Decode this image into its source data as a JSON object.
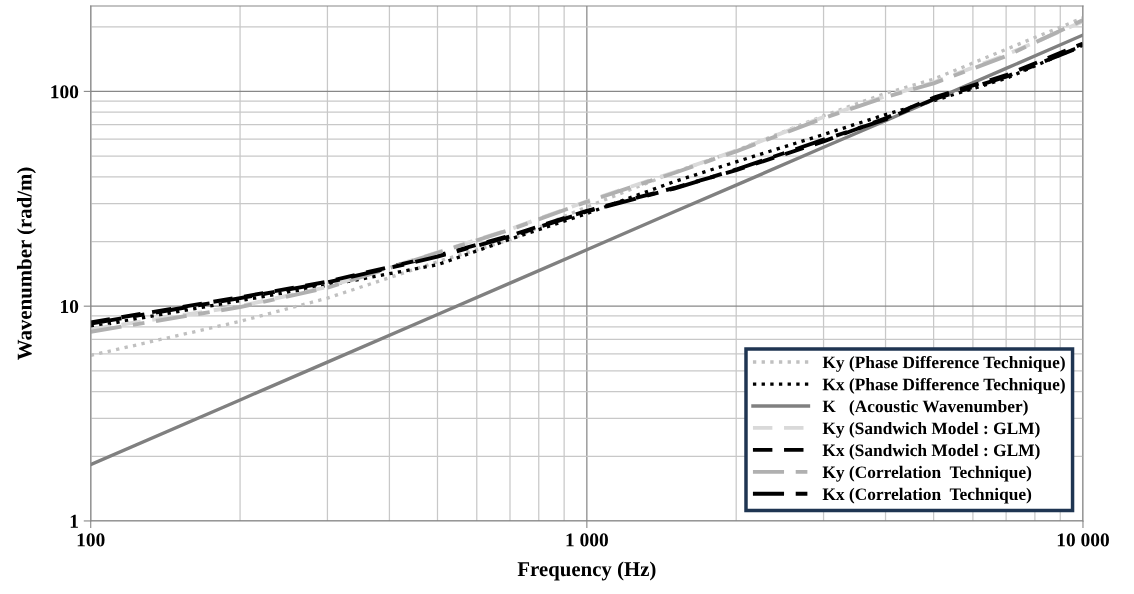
{
  "chart_data": {
    "type": "line",
    "xlabel": "Frequency (Hz)",
    "ylabel": "Wavenumber (rad/m)",
    "log": "xy",
    "grid": true,
    "legend": "bottom right",
    "x": [
      100,
      200,
      300,
      500,
      700,
      1000,
      1500,
      2000,
      3000,
      4000,
      5000,
      7000,
      10000
    ],
    "xlim": [
      100,
      10000
    ],
    "xticks": [
      100,
      {
        "value": 1000,
        "label": "1 000"
      },
      {
        "value": 10000,
        "label": "10 000"
      }
    ],
    "ylim": [
      1,
      250
    ],
    "yticks": [
      1,
      10,
      100
    ],
    "series": [
      {
        "name": "Ky (Phase Difference Technique)",
        "color": "#c0c0c0",
        "line_style": "dotted",
        "values": [
          5.9,
          8.5,
          10.9,
          16.1,
          20.4,
          29,
          42,
          53,
          77,
          98,
          114,
          157,
          220
        ]
      },
      {
        "name": "Kx (Phase Difference Technique)",
        "color": "#000000",
        "line_style": "dotted",
        "values": [
          8.0,
          10.6,
          12.5,
          15.6,
          20.5,
          27,
          38,
          47,
          63,
          78,
          90.5,
          115,
          164
        ]
      },
      {
        "name": "K   (Acoustic Wavenumber)",
        "color": "#808080",
        "line_style": "solid",
        "values": [
          1.83,
          3.66,
          5.49,
          9.15,
          12.8,
          18.3,
          27.5,
          36.6,
          55,
          73,
          91.5,
          128,
          183
        ]
      },
      {
        "name": "Ky (Sandwich Model : GLM)",
        "color": "#d9d9d9",
        "line_style": "dashed",
        "values": [
          7.8,
          10.0,
          12.3,
          17.8,
          22.8,
          30.8,
          42,
          53,
          76,
          95,
          110,
          148,
          212
        ]
      },
      {
        "name": "Kx (Sandwich Model : GLM)",
        "color": "#000000",
        "line_style": "dashed",
        "values": [
          8.4,
          11.0,
          13.0,
          17.2,
          21.3,
          27.8,
          35.5,
          43,
          58.5,
          75,
          93.5,
          119,
          167
        ]
      },
      {
        "name": "Ky (Correlation  Technique)",
        "color": "#b0b0b0",
        "line_style": "dashdot",
        "values": [
          7.6,
          9.9,
          12.2,
          17.7,
          22.7,
          30.6,
          41.7,
          52.6,
          75,
          94,
          109,
          146,
          215
        ]
      },
      {
        "name": "Kx (Correlation  Technique)",
        "color": "#000000",
        "line_style": "dashdot",
        "values": [
          8.3,
          10.9,
          12.9,
          17.0,
          21.1,
          27.6,
          35.3,
          43.3,
          59.6,
          74,
          92,
          117,
          163
        ]
      }
    ]
  }
}
